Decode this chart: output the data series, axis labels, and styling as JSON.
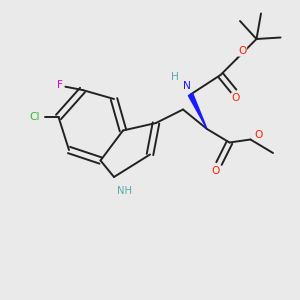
{
  "background_color": "#eaeaea",
  "bond_color": "#222222",
  "N_indole_color": "#1a1aff",
  "N_boc_color": "#1a1aff",
  "H_color": "#5aabab",
  "O_color": "#ff2200",
  "F_color": "#dd00dd",
  "Cl_color": "#33bb33",
  "lw": 1.4,
  "fs": 7.2,
  "xlim": [
    0,
    10
  ],
  "ylim": [
    0,
    10
  ]
}
